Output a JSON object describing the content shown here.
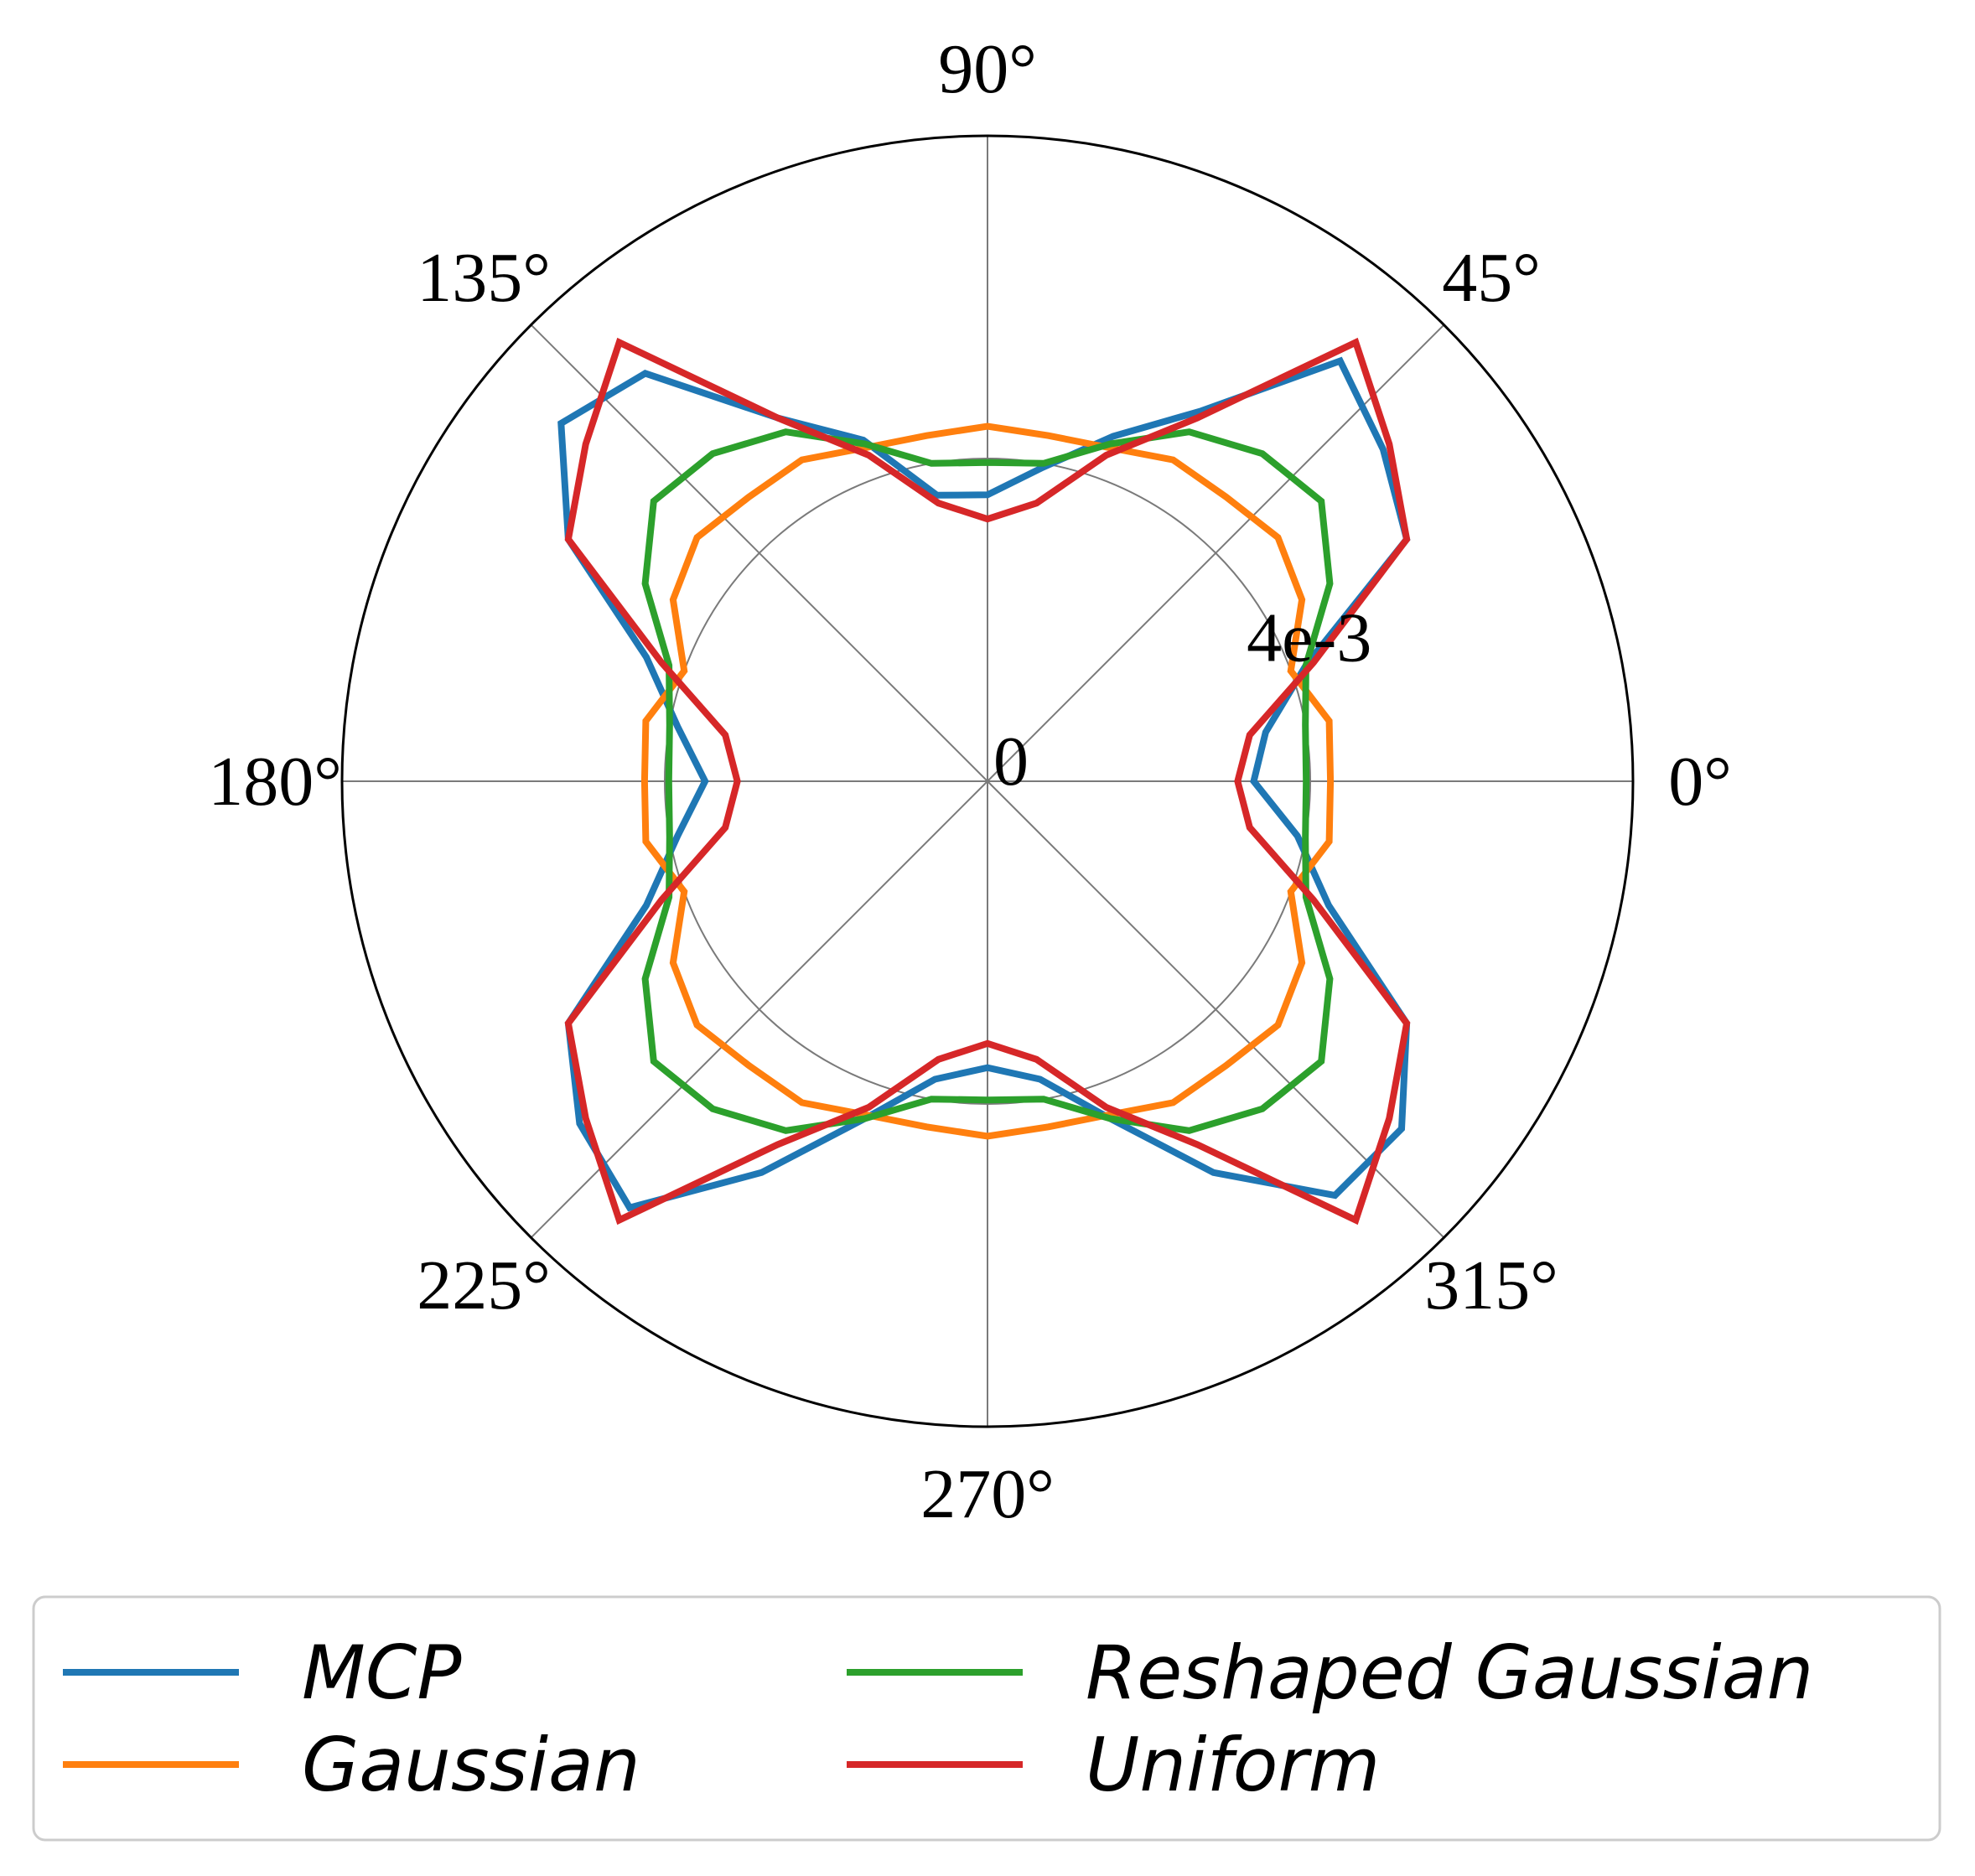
{
  "chart_data": {
    "type": "polar-line",
    "title": "",
    "angular_ticks": [
      "0°",
      "45°",
      "90°",
      "135°",
      "180°",
      "225°",
      "270°",
      "315°"
    ],
    "radial_ticks": [
      {
        "value": 0,
        "label": "0"
      },
      {
        "value": 0.004,
        "label": "4e-3"
      }
    ],
    "rlim": [
      0,
      0.008
    ],
    "theta_deg": [
      0,
      10,
      20,
      30,
      40,
      50,
      60,
      70,
      80,
      90,
      100,
      110,
      120,
      130,
      140,
      150,
      160,
      170,
      180,
      190,
      200,
      210,
      220,
      230,
      240,
      250,
      260,
      270,
      280,
      290,
      300,
      310,
      320,
      330,
      340,
      350
    ],
    "series": [
      {
        "name": "MCP",
        "color": "#1f77b4",
        "values": [
          0.0033,
          0.0035,
          0.0042,
          0.006,
          0.0064,
          0.0068,
          0.0053,
          0.00455,
          0.00395,
          0.00355,
          0.0036,
          0.0045,
          0.0052,
          0.0066,
          0.0069,
          0.006,
          0.0045,
          0.0039,
          0.0035,
          0.0039,
          0.0045,
          0.006,
          0.0066,
          0.0069,
          0.0056,
          0.00445,
          0.00375,
          0.00355,
          0.00375,
          0.00445,
          0.0056,
          0.0067,
          0.0067,
          0.006,
          0.0045,
          0.0039
        ]
      },
      {
        "name": "Gaussian",
        "color": "#ff7f0e",
        "values": [
          0.00425,
          0.0043,
          0.004,
          0.0045,
          0.0047,
          0.0046,
          0.0046,
          0.0044,
          0.00435,
          0.0044,
          0.00435,
          0.0044,
          0.0046,
          0.0046,
          0.0047,
          0.0045,
          0.004,
          0.0043,
          0.00425,
          0.0043,
          0.004,
          0.0045,
          0.0047,
          0.0046,
          0.0046,
          0.0044,
          0.00435,
          0.0044,
          0.00435,
          0.0044,
          0.0046,
          0.0046,
          0.0047,
          0.0045,
          0.004,
          0.0043
        ]
      },
      {
        "name": "Reshaped Gaussian",
        "color": "#2ca02c",
        "values": [
          0.00395,
          0.004,
          0.0042,
          0.0049,
          0.0054,
          0.0053,
          0.005,
          0.00445,
          0.004,
          0.00395,
          0.004,
          0.00445,
          0.005,
          0.0053,
          0.0054,
          0.0049,
          0.0042,
          0.004,
          0.00395,
          0.004,
          0.0042,
          0.0049,
          0.0054,
          0.0053,
          0.005,
          0.00445,
          0.004,
          0.00395,
          0.004,
          0.00445,
          0.005,
          0.0053,
          0.0054,
          0.0049,
          0.0042,
          0.004
        ]
      },
      {
        "name": "Uniform",
        "color": "#d62728",
        "values": [
          0.0031,
          0.0033,
          0.0043,
          0.006,
          0.0065,
          0.0071,
          0.0052,
          0.0043,
          0.0035,
          0.00325,
          0.0035,
          0.0043,
          0.0052,
          0.0071,
          0.0065,
          0.006,
          0.0043,
          0.0033,
          0.0031,
          0.0033,
          0.0043,
          0.006,
          0.0065,
          0.0071,
          0.0052,
          0.0043,
          0.0035,
          0.00325,
          0.0035,
          0.0043,
          0.0052,
          0.0071,
          0.0065,
          0.006,
          0.0043,
          0.0033
        ]
      }
    ],
    "legend": {
      "placement": "bottom",
      "columns": 2
    },
    "grid": true
  }
}
